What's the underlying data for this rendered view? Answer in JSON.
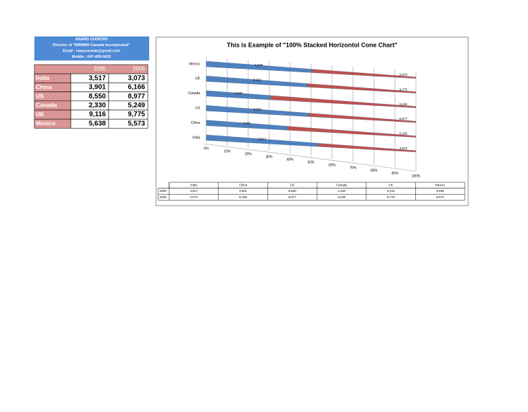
{
  "header": {
    "lines": [
      "ANAND CHOKSHI",
      "Director of \"8990859 Canada Incorporated\"",
      "Email    : naascanada@gmail.com",
      "Mobile : 647-409-6615"
    ]
  },
  "table": {
    "columns": [
      "2005",
      "2006"
    ],
    "rows": [
      [
        "India",
        "3,517",
        "3,073"
      ],
      [
        "China",
        "3,901",
        "6,166"
      ],
      [
        "US",
        "8,550",
        "8,977"
      ],
      [
        "Canada",
        "2,330",
        "5,249"
      ],
      [
        "UK",
        "9,116",
        "9,775"
      ],
      [
        "Mexico",
        "5,638",
        "5,573"
      ]
    ]
  },
  "chart_data": {
    "type": "stacked100_cone",
    "title": "This is Example of \"100% Stacked Horizontol Cone Chart\"",
    "categories": [
      "India",
      "China",
      "US",
      "Canada",
      "UK",
      "Mexico"
    ],
    "series": [
      {
        "name": "2005",
        "color": "#4f81bd",
        "values": [
          3517,
          3901,
          8550,
          2330,
          9116,
          5638
        ],
        "value_labels": [
          "3,517",
          "3,901",
          "8,550",
          "2,330",
          "9,116",
          "5,638"
        ]
      },
      {
        "name": "2006",
        "color": "#c0504d",
        "values": [
          3073,
          6166,
          8977,
          5249,
          9775,
          5573
        ],
        "value_labels": [
          "3,073",
          "6,166",
          "8,977",
          "5,249",
          "9,775",
          "5,573"
        ]
      }
    ],
    "xlim": [
      0,
      100
    ],
    "xticks": [
      {
        "value": 0,
        "label": "0%"
      },
      {
        "value": 10,
        "label": "10%"
      },
      {
        "value": 20,
        "label": "20%"
      },
      {
        "value": 30,
        "label": "30%"
      },
      {
        "value": 40,
        "label": "40%"
      },
      {
        "value": 50,
        "label": "50%"
      },
      {
        "value": 60,
        "label": "60%"
      },
      {
        "value": 70,
        "label": "70%"
      },
      {
        "value": 80,
        "label": "80%"
      },
      {
        "value": 90,
        "label": "90%"
      },
      {
        "value": 100,
        "label": "100%"
      }
    ],
    "grid": true,
    "data_table": true
  }
}
